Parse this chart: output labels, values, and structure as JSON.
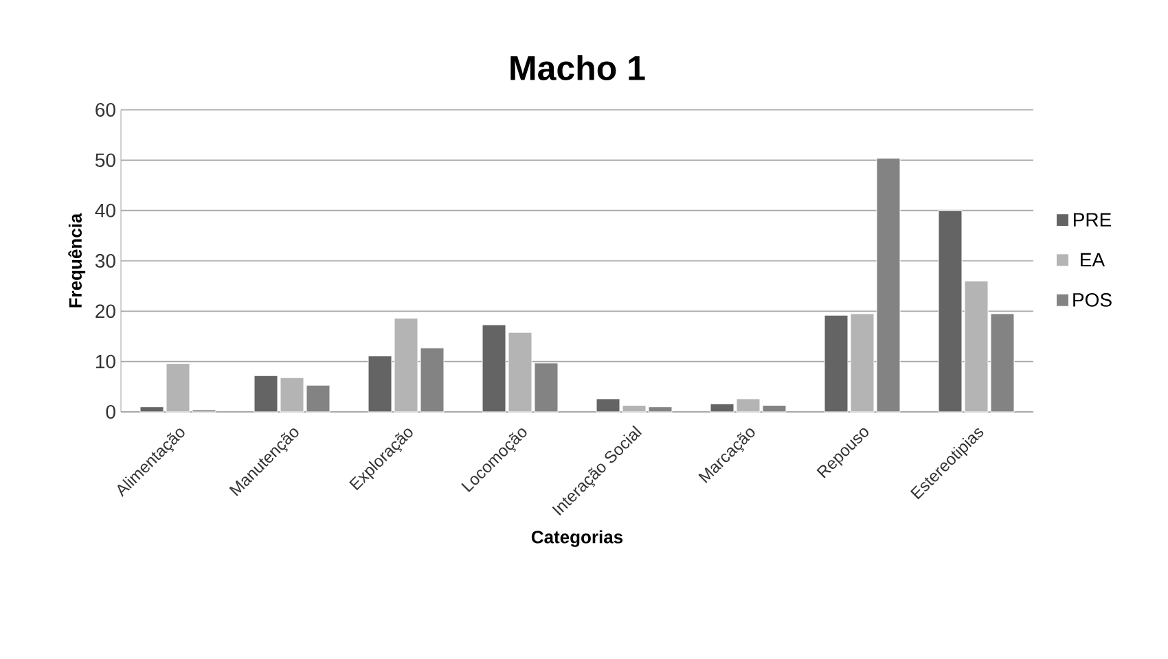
{
  "chart_data": {
    "type": "bar",
    "title": "Macho 1",
    "xlabel": "Categorias",
    "ylabel": "Frequência",
    "categories": [
      "Alimentação",
      "Manutenção",
      "Exploração",
      "Locomoção",
      "Interação Social",
      "Marcação",
      "Repouso",
      "Estereotipias"
    ],
    "series": [
      {
        "name": "PRE",
        "color": "#646464",
        "values": [
          1,
          7.2,
          11.1,
          17.3,
          2.6,
          1.6,
          19.2,
          40
        ]
      },
      {
        "name": "EA",
        "color": "#b4b4b4",
        "values": [
          9.6,
          6.8,
          18.6,
          15.8,
          1.3,
          2.6,
          19.5,
          26
        ]
      },
      {
        "name": "POS",
        "color": "#838383",
        "values": [
          0.4,
          5.3,
          12.7,
          9.7,
          1.0,
          1.3,
          50.4,
          19.5
        ]
      }
    ],
    "ylim": [
      0,
      60
    ],
    "yticks": [
      0,
      10,
      20,
      30,
      40,
      50,
      60
    ],
    "grid": "y",
    "legend": "right"
  }
}
